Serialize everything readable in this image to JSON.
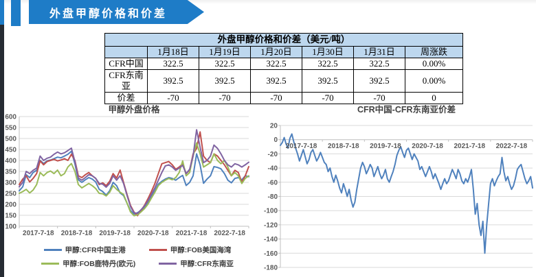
{
  "banner": {
    "title": "外盘甲醇价格和价差"
  },
  "colors": {
    "accent_blue": "#1E7CC7",
    "edge_dark": "#262B33",
    "table_header_bg": "#BDD7EE",
    "grid_line": "#D9D9D9",
    "axis_line": "#BFBFBF",
    "tick_text": "#595959",
    "title_text": "#404040"
  },
  "table": {
    "title": "外盘甲醇价格和价差（美元/吨）",
    "headers": [
      "",
      "1月18日",
      "1月19日",
      "1月20日",
      "1月30日",
      "1月31日",
      "周涨跌"
    ],
    "rows": [
      {
        "label": "CFR中国",
        "cells": [
          "322.5",
          "322.5",
          "322.5",
          "322.5",
          "322.5",
          "0.00%"
        ]
      },
      {
        "label": "CFR东南亚",
        "cells": [
          "392.5",
          "392.5",
          "392.5",
          "392.5",
          "392.5",
          "0.00%"
        ]
      },
      {
        "label": "价差",
        "cells": [
          "-70",
          "-70",
          "-70",
          "-70",
          "-70",
          "0"
        ]
      }
    ]
  },
  "chart_data": [
    {
      "id": "methanol-foreign-prices",
      "type": "line",
      "title": "甲醇外盘价格",
      "xlabel": "",
      "ylabel": "",
      "grid": true,
      "legend_position": "bottom",
      "ylim": [
        100,
        600
      ],
      "y_ticks": [
        600,
        550,
        500,
        450,
        400,
        350,
        300,
        250,
        200,
        150,
        100
      ],
      "x_labels": [
        "2017-7-18",
        "2018-7-18",
        "2019-7-18",
        "2020-7-18",
        "2021-7-18",
        "2022-7-18"
      ],
      "series": [
        {
          "name": "甲醇:CFR中国主港",
          "color": "#4F81BD",
          "values": [
            262,
            280,
            335,
            322,
            345,
            355,
            400,
            386,
            398,
            402,
            408,
            415,
            412,
            420,
            428,
            442,
            385,
            312,
            300,
            312,
            322,
            315,
            302,
            268,
            258,
            242,
            262,
            300,
            285,
            252,
            240,
            205,
            172,
            155,
            162,
            172,
            188,
            208,
            235,
            262,
            292,
            305,
            315,
            322,
            318,
            310,
            322,
            332,
            286,
            300,
            330,
            430,
            380,
            296,
            315,
            330,
            372,
            368,
            362,
            340,
            310,
            298,
            318,
            322,
            312,
            330,
            326
          ]
        },
        {
          "name": "甲醇:FOB美国海湾",
          "color": "#C0504D",
          "values": [
            290,
            315,
            330,
            302,
            318,
            340,
            398,
            380,
            395,
            400,
            405,
            398,
            402,
            408,
            400,
            428,
            400,
            330,
            322,
            335,
            345,
            330,
            318,
            290,
            298,
            285,
            305,
            340,
            320,
            356,
            300,
            245,
            195,
            165,
            148,
            172,
            195,
            225,
            258,
            295,
            340,
            385,
            390,
            395,
            380,
            360,
            370,
            385,
            340,
            356,
            430,
            455,
            530,
            420,
            400,
            390,
            430,
            420,
            400,
            380,
            355,
            330,
            355,
            345,
            300,
            330,
            372
          ]
        },
        {
          "name": "甲醇:FOB鹿特丹(欧元)",
          "color": "#9BBB59",
          "values": [
            250,
            258,
            268,
            252,
            265,
            290,
            345,
            330,
            345,
            352,
            340,
            356,
            330,
            340,
            370,
            386,
            350,
            290,
            275,
            285,
            295,
            285,
            272,
            250,
            248,
            238,
            255,
            285,
            268,
            255,
            245,
            205,
            165,
            148,
            152,
            165,
            180,
            200,
            228,
            255,
            285,
            300,
            310,
            318,
            312,
            322,
            345,
            398,
            330,
            345,
            420,
            480,
            430,
            370,
            380,
            390,
            430,
            400,
            385,
            400,
            370,
            330,
            345,
            330,
            295,
            318,
            330
          ]
        },
        {
          "name": "甲醇:CFR东南亚",
          "color": "#8064A2",
          "values": [
            280,
            300,
            350,
            340,
            355,
            365,
            420,
            400,
            410,
            415,
            428,
            438,
            430,
            435,
            445,
            456,
            395,
            320,
            310,
            322,
            335,
            330,
            318,
            295,
            292,
            278,
            295,
            330,
            310,
            330,
            295,
            240,
            190,
            162,
            158,
            175,
            192,
            215,
            245,
            275,
            310,
            345,
            375,
            380,
            370,
            355,
            365,
            378,
            340,
            360,
            420,
            540,
            460,
            390,
            400,
            420,
            470,
            455,
            430,
            400,
            380,
            370,
            385,
            380,
            370,
            380,
            392
          ]
        }
      ]
    },
    {
      "id": "cfr-china-minus-sea-spread",
      "type": "line",
      "title": "CFR中国-CFR东南亚价差",
      "xlabel": "",
      "ylabel": "",
      "grid": true,
      "legend_position": "none",
      "ylim": [
        -180,
        20
      ],
      "y_ticks": [
        20,
        0,
        -20,
        -40,
        -60,
        -80,
        -100,
        -120,
        -140,
        -160,
        -180
      ],
      "x_labels": [
        "2017-7-18",
        "2018-7-18",
        "2019-7-18",
        "2020-7-18",
        "2021-7-18",
        "2022-7-18"
      ],
      "series": [
        {
          "name": "CFR中国-CFR东南亚价差",
          "color": "#4F81BD",
          "values": [
            -8,
            -4,
            3,
            -6,
            -12,
            2,
            8,
            -3,
            -12,
            -20,
            -30,
            -22,
            -14,
            -24,
            -34,
            -28,
            -18,
            -14,
            -22,
            -30,
            -25,
            -18,
            -25,
            -32,
            -35,
            -45,
            -40,
            -52,
            -60,
            -50,
            -58,
            -68,
            -75,
            -62,
            -70,
            -80,
            -70,
            -85,
            -95,
            -88,
            -70,
            -55,
            -40,
            -32,
            -38,
            -48,
            -42,
            -35,
            -40,
            -52,
            -45,
            -38,
            -48,
            -55,
            -50,
            -42,
            -55,
            -60,
            -52,
            -45,
            -35,
            -22,
            -15,
            -10,
            -18,
            -25,
            -15,
            -12,
            -20,
            -28,
            -20,
            -25,
            -30,
            -42,
            -38,
            -45,
            -52,
            -45,
            -38,
            -45,
            -55,
            -48,
            -55,
            -62,
            -70,
            -62,
            -55,
            -62,
            -58,
            -50,
            -42,
            -48,
            -55,
            -42,
            -48,
            -58,
            -62,
            -55,
            -60,
            -52,
            -42,
            -70,
            -105,
            -90,
            -120,
            -135,
            -115,
            -160,
            -120,
            -90,
            -62,
            -55,
            -65,
            -58,
            -52,
            -48,
            -25,
            -45,
            -58,
            -52,
            -62,
            -70,
            -65,
            -55,
            -42,
            -38,
            -35,
            -45,
            -55,
            -62,
            -58,
            -52,
            -68
          ]
        }
      ]
    }
  ]
}
